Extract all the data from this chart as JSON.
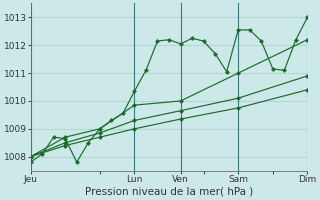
{
  "xlabel": "Pression niveau de la mer( hPa )",
  "bg_color": "#cce8e8",
  "grid_color_h": "#aacccc",
  "grid_color_v": "#3a7a7a",
  "line_color": "#1a6b2a",
  "ylim": [
    1007.5,
    1013.5
  ],
  "yticks": [
    1008,
    1009,
    1010,
    1011,
    1012,
    1013
  ],
  "xtick_labels": [
    "Jeu",
    "",
    "Lun",
    "Ven",
    "",
    "Sam",
    "",
    "Dim"
  ],
  "xtick_positions": [
    0,
    6,
    9,
    13,
    15,
    18,
    21,
    24
  ],
  "vlines": [
    0,
    9,
    13,
    18,
    24
  ],
  "line1_x": [
    0,
    1,
    2,
    3,
    4,
    5,
    6,
    7,
    8,
    9,
    10,
    11,
    12,
    13,
    14,
    15,
    16,
    17,
    18,
    19,
    20,
    21,
    22,
    23,
    24
  ],
  "line1": [
    1007.8,
    1008.1,
    1008.7,
    1008.65,
    1007.8,
    1008.5,
    1009.0,
    1009.3,
    1009.55,
    1010.35,
    1011.1,
    1012.15,
    1012.2,
    1012.05,
    1012.25,
    1012.15,
    1011.7,
    1011.05,
    1012.55,
    1012.55,
    1012.15,
    1011.15,
    1011.1,
    1012.2,
    1013.0
  ],
  "line2_x": [
    0,
    3,
    6,
    9,
    13,
    18,
    24
  ],
  "line2": [
    1008.0,
    1008.7,
    1009.0,
    1009.85,
    1010.0,
    1011.0,
    1012.2
  ],
  "line3_x": [
    0,
    3,
    6,
    9,
    13,
    18,
    24
  ],
  "line3": [
    1008.0,
    1008.5,
    1008.85,
    1009.3,
    1009.65,
    1010.1,
    1010.9
  ],
  "line4_x": [
    0,
    3,
    6,
    9,
    13,
    18,
    24
  ],
  "line4": [
    1008.0,
    1008.4,
    1008.7,
    1009.0,
    1009.35,
    1009.75,
    1010.4
  ]
}
